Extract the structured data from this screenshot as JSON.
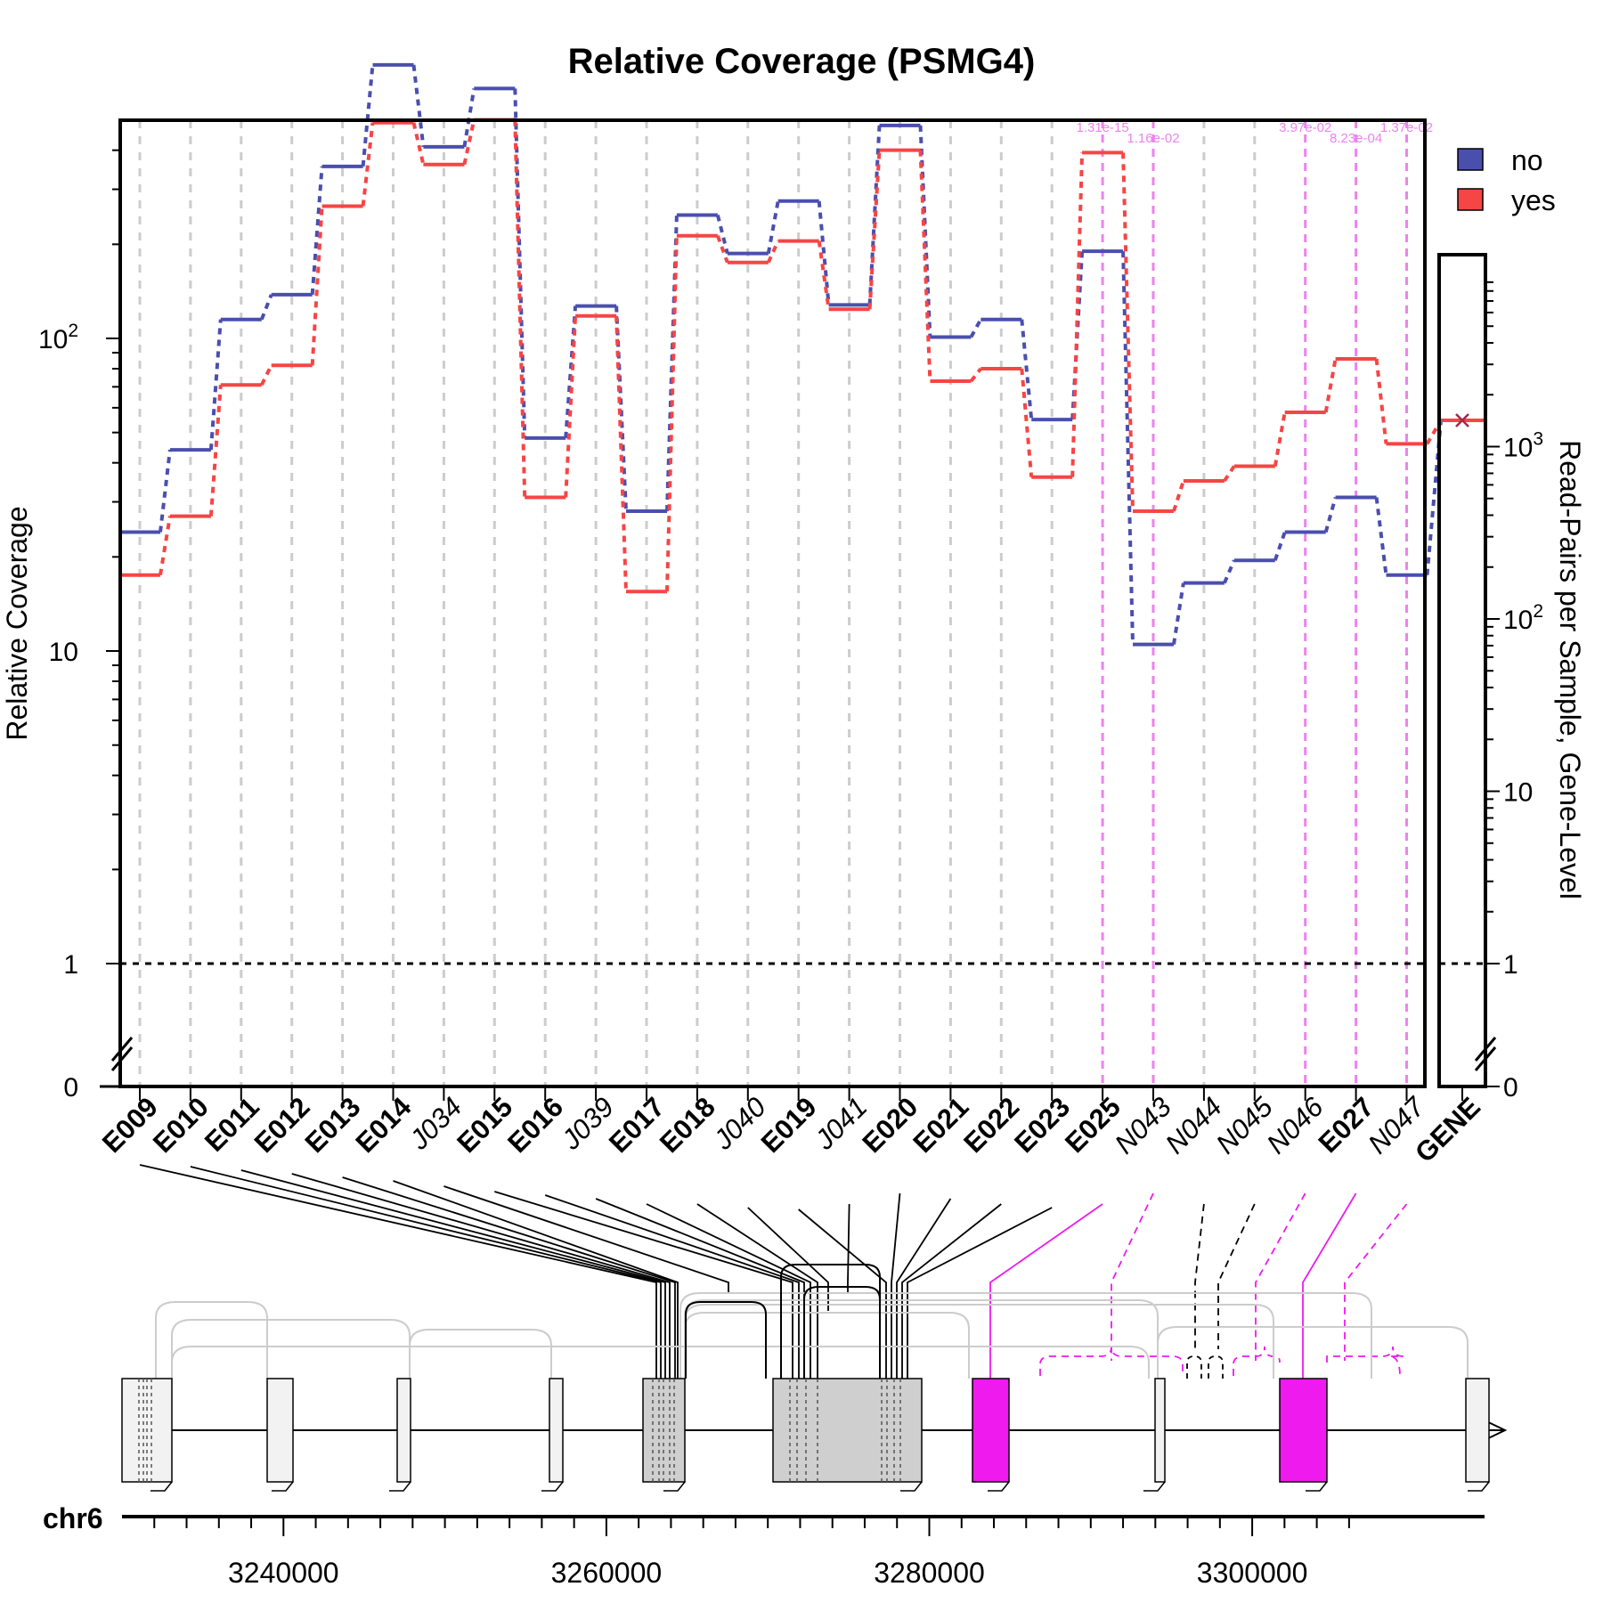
{
  "chart_data": {
    "type": "line",
    "title": "Relative Coverage (PSMG4)",
    "ylabel": "Relative Coverage",
    "ylabel_right": "Read-Pairs per Sample, Gene-Level",
    "y_scale": "log",
    "y_ticks_left": [
      {
        "label": "0",
        "value": 0
      },
      {
        "label": "1",
        "value": 1
      },
      {
        "label": "10",
        "value": 10
      },
      {
        "label": "10",
        "sup": "2",
        "value": 100
      }
    ],
    "y_ticks_right": [
      {
        "label": "0",
        "value": 0
      },
      {
        "label": "1",
        "value": 1
      },
      {
        "label": "10",
        "value": 10
      },
      {
        "label": "10",
        "sup": "2",
        "value": 100
      },
      {
        "label": "10",
        "sup": "3",
        "value": 1000
      }
    ],
    "features": [
      {
        "id": "E009",
        "kind": "exon"
      },
      {
        "id": "E010",
        "kind": "exon"
      },
      {
        "id": "E011",
        "kind": "exon"
      },
      {
        "id": "E012",
        "kind": "exon"
      },
      {
        "id": "E013",
        "kind": "exon"
      },
      {
        "id": "E014",
        "kind": "exon"
      },
      {
        "id": "J034",
        "kind": "junction"
      },
      {
        "id": "E015",
        "kind": "exon"
      },
      {
        "id": "E016",
        "kind": "exon"
      },
      {
        "id": "J039",
        "kind": "junction"
      },
      {
        "id": "E017",
        "kind": "exon"
      },
      {
        "id": "E018",
        "kind": "exon"
      },
      {
        "id": "J040",
        "kind": "junction"
      },
      {
        "id": "E019",
        "kind": "exon"
      },
      {
        "id": "J041",
        "kind": "junction"
      },
      {
        "id": "E020",
        "kind": "exon"
      },
      {
        "id": "E021",
        "kind": "exon"
      },
      {
        "id": "E022",
        "kind": "exon"
      },
      {
        "id": "E023",
        "kind": "exon"
      },
      {
        "id": "E025",
        "kind": "exon"
      },
      {
        "id": "N043",
        "kind": "novel"
      },
      {
        "id": "N044",
        "kind": "novel"
      },
      {
        "id": "N045",
        "kind": "novel"
      },
      {
        "id": "N046",
        "kind": "novel"
      },
      {
        "id": "E027",
        "kind": "exon"
      },
      {
        "id": "N047",
        "kind": "novel"
      }
    ],
    "gene_label": "GENE",
    "series": [
      {
        "name": "no",
        "color": "#4A4FAE",
        "values": [
          24,
          44,
          115,
          138,
          355,
          750,
          410,
          630,
          48,
          127,
          28,
          248,
          187,
          275,
          128,
          480,
          101,
          115,
          55,
          190,
          10.5,
          16.5,
          19.5,
          24,
          31,
          17.5
        ],
        "gene_value": 1420
      },
      {
        "name": "yes",
        "color": "#F64545",
        "values": [
          17.5,
          27,
          71,
          82,
          265,
          490,
          360,
          500,
          31,
          118,
          15.5,
          213,
          175,
          205,
          124,
          400,
          73,
          80,
          36,
          393,
          28,
          35,
          39,
          58,
          86,
          46
        ],
        "gene_value": 1420
      }
    ],
    "significant": [
      {
        "feature": "E025",
        "pvalue": "1.31e-15"
      },
      {
        "feature": "N043",
        "pvalue": "1.16e-02"
      },
      {
        "feature": "N046",
        "pvalue": "3.97e-02"
      },
      {
        "feature": "E027",
        "pvalue": "8.23e-04"
      },
      {
        "feature": "N047",
        "pvalue": "1.37e-02"
      }
    ],
    "legend": {
      "placement": "top-right",
      "entries": [
        "no",
        "yes"
      ]
    },
    "chromosome": "chr6",
    "coord_ticks": [
      3240000,
      3260000,
      3280000,
      3300000
    ],
    "coord_range": [
      3230000,
      3307000
    ],
    "highlight_color": "#EE1AEE",
    "grid": true
  }
}
